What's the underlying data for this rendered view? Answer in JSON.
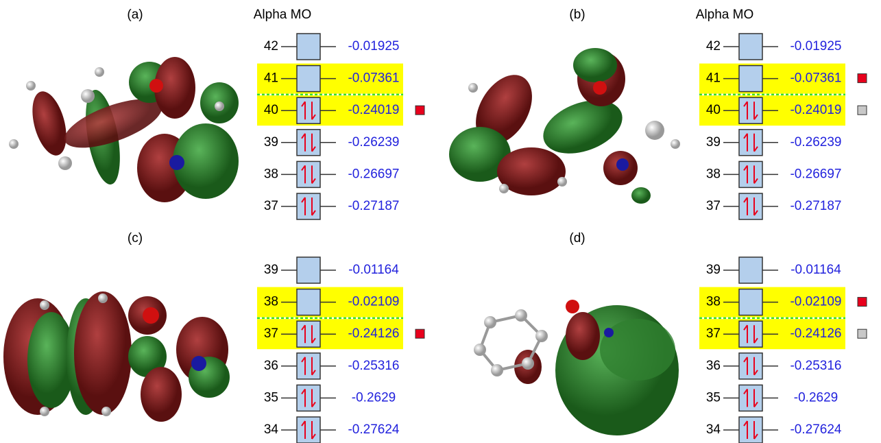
{
  "panels": [
    {
      "label": "(a)",
      "header": "Alpha MO",
      "orbitals": [
        {
          "number": 42,
          "energy": -0.01925,
          "occupied": false,
          "highlight": false
        },
        {
          "number": 41,
          "energy": -0.07361,
          "occupied": false,
          "highlight": true
        },
        {
          "number": 40,
          "energy": -0.24019,
          "occupied": true,
          "highlight": true,
          "marker": "#e8001c"
        },
        {
          "number": 39,
          "energy": -0.26239,
          "occupied": true,
          "highlight": false
        },
        {
          "number": 38,
          "energy": -0.26697,
          "occupied": true,
          "highlight": false
        },
        {
          "number": 37,
          "energy": -0.27187,
          "occupied": true,
          "highlight": false
        }
      ]
    },
    {
      "label": "(b)",
      "header": "Alpha MO",
      "orbitals": [
        {
          "number": 42,
          "energy": -0.01925,
          "occupied": false,
          "highlight": false
        },
        {
          "number": 41,
          "energy": -0.07361,
          "occupied": false,
          "highlight": true,
          "marker": "#e8001c"
        },
        {
          "number": 40,
          "energy": -0.24019,
          "occupied": true,
          "highlight": true,
          "marker": "#c8c8c8"
        },
        {
          "number": 39,
          "energy": -0.26239,
          "occupied": true,
          "highlight": false
        },
        {
          "number": 38,
          "energy": -0.26697,
          "occupied": true,
          "highlight": false
        },
        {
          "number": 37,
          "energy": -0.27187,
          "occupied": true,
          "highlight": false
        }
      ]
    },
    {
      "label": "(c)",
      "orbitals": [
        {
          "number": 39,
          "energy": -0.01164,
          "occupied": false,
          "highlight": false
        },
        {
          "number": 38,
          "energy": -0.02109,
          "occupied": false,
          "highlight": true
        },
        {
          "number": 37,
          "energy": -0.24126,
          "occupied": true,
          "highlight": true,
          "marker": "#e8001c"
        },
        {
          "number": 36,
          "energy": -0.25316,
          "occupied": true,
          "highlight": false
        },
        {
          "number": 35,
          "energy": -0.2629,
          "occupied": true,
          "highlight": false
        },
        {
          "number": 34,
          "energy": -0.27624,
          "occupied": true,
          "highlight": false
        }
      ]
    },
    {
      "label": "(d)",
      "orbitals": [
        {
          "number": 39,
          "energy": -0.01164,
          "occupied": false,
          "highlight": false
        },
        {
          "number": 38,
          "energy": -0.02109,
          "occupied": false,
          "highlight": true,
          "marker": "#e8001c"
        },
        {
          "number": 37,
          "energy": -0.24126,
          "occupied": true,
          "highlight": true,
          "marker": "#c8c8c8"
        },
        {
          "number": 36,
          "energy": -0.25316,
          "occupied": true,
          "highlight": false
        },
        {
          "number": 35,
          "energy": -0.2629,
          "occupied": true,
          "highlight": false
        },
        {
          "number": 34,
          "energy": -0.27624,
          "occupied": true,
          "highlight": false
        }
      ]
    }
  ]
}
